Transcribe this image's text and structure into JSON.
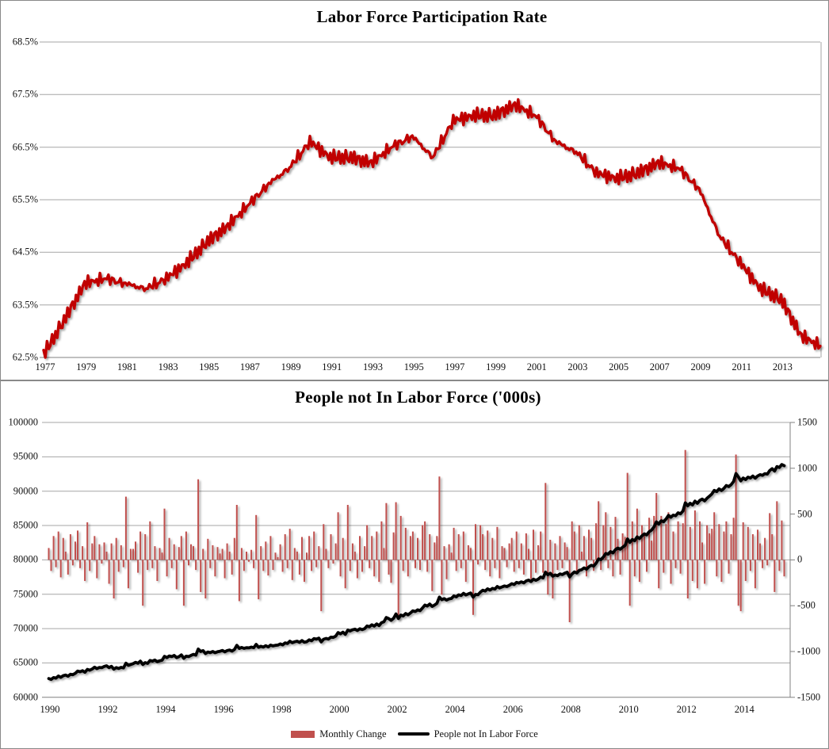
{
  "page": {
    "background": "#ffffff",
    "panel_border_color": "#898989",
    "grid_color": "#A6A6A6",
    "axis_color": "#808080"
  },
  "chart_data": [
    {
      "type": "line",
      "title": "Labor Force Participation Rate",
      "series_name": "Labor Force Participation Rate",
      "line_color": "#C00000",
      "y_ticks": [
        "68.5%",
        "67.5%",
        "66.5%",
        "65.5%",
        "64.5%",
        "63.5%",
        "62.5%"
      ],
      "y_tick_values": [
        68.5,
        67.5,
        66.5,
        65.5,
        64.5,
        63.5,
        62.5
      ],
      "ylim": [
        62.5,
        68.5
      ],
      "x_tick_years": [
        1977,
        1979,
        1981,
        1983,
        1985,
        1987,
        1989,
        1991,
        1993,
        1995,
        1997,
        1999,
        2001,
        2003,
        2005,
        2007,
        2009,
        2011,
        2013
      ],
      "x_range": [
        1977.0,
        2014.92
      ],
      "frequency": "monthly",
      "anchor_year_start": 1977,
      "anchor_values_january": [
        62.55,
        63.2,
        63.9,
        64.0,
        63.9,
        63.8,
        64.0,
        64.3,
        64.7,
        65.0,
        65.4,
        65.8,
        66.1,
        66.6,
        66.3,
        66.3,
        66.2,
        66.5,
        66.7,
        66.3,
        67.0,
        67.1,
        67.1,
        67.3,
        67.1,
        66.6,
        66.4,
        66.0,
        65.9,
        66.0,
        66.2,
        66.1,
        65.7,
        64.8,
        64.3,
        63.8,
        63.6,
        62.9,
        62.7
      ],
      "noise_a": [
        0.05,
        -0.06,
        0.09,
        -0.05,
        0.0,
        0.07,
        -0.08,
        0.03,
        -0.06,
        0.08,
        -0.03,
        -0.04
      ],
      "noise_b": [
        0.04,
        -0.05,
        0.06,
        0.0,
        -0.04,
        0.05,
        -0.03
      ],
      "grid": true
    },
    {
      "type": "bar+line",
      "title": "People not In Labor Force ('000s)",
      "left_axis": {
        "ticks": [
          100000,
          95000,
          90000,
          85000,
          80000,
          75000,
          70000,
          65000,
          60000
        ],
        "lim": [
          60000,
          100000
        ]
      },
      "right_axis": {
        "ticks": [
          1500,
          1000,
          500,
          0,
          -500,
          -1000,
          -1500
        ],
        "lim": [
          -1500,
          1500
        ]
      },
      "x_tick_years": [
        1990,
        1992,
        1994,
        1996,
        1998,
        2000,
        2002,
        2004,
        2006,
        2008,
        2010,
        2012,
        2014
      ],
      "x_range": [
        1990.0,
        2015.5
      ],
      "frequency": "monthly",
      "start_month": "1990-01",
      "start_value": 62600,
      "bar_color": "#C0504D",
      "line_color": "#000000",
      "monthly_change": [
        130,
        -120,
        260,
        -80,
        310,
        -190,
        240,
        90,
        -160,
        280,
        -60,
        200,
        320,
        -90,
        150,
        -230,
        410,
        -120,
        180,
        260,
        -200,
        170,
        -40,
        190,
        90,
        -260,
        180,
        -420,
        240,
        -130,
        160,
        -80,
        690,
        -310,
        120,
        120,
        200,
        -140,
        310,
        -500,
        280,
        -110,
        420,
        -90,
        150,
        -230,
        130,
        80,
        560,
        -180,
        240,
        -90,
        170,
        -320,
        140,
        260,
        -500,
        310,
        -60,
        170,
        150,
        -110,
        880,
        -350,
        120,
        -420,
        230,
        -90,
        160,
        -180,
        140,
        70,
        120,
        -200,
        180,
        90,
        -160,
        240,
        600,
        -450,
        130,
        -120,
        90,
        -20,
        110,
        -90,
        490,
        -430,
        150,
        -120,
        200,
        -170,
        260,
        -110,
        80,
        30,
        170,
        -130,
        280,
        -90,
        340,
        -220,
        130,
        90,
        -160,
        250,
        -240,
        80,
        260,
        -120,
        310,
        -80,
        150,
        -560,
        390,
        120,
        -90,
        280,
        -40,
        180,
        520,
        -180,
        240,
        -310,
        600,
        -120,
        180,
        90,
        -200,
        260,
        -130,
        150,
        380,
        -90,
        260,
        -180,
        310,
        -240,
        420,
        130,
        620,
        -160,
        -250,
        300,
        630,
        -650,
        480,
        -120,
        350,
        -180,
        260,
        310,
        -90,
        240,
        -110,
        380,
        420,
        -130,
        280,
        -340,
        190,
        260,
        910,
        -380,
        150,
        -210,
        170,
        80,
        350,
        -120,
        280,
        -90,
        310,
        -240,
        160,
        130,
        -600,
        390,
        -50,
        380,
        280,
        -110,
        320,
        -180,
        240,
        -90,
        360,
        -200,
        150,
        130,
        -80,
        180,
        240,
        -130,
        310,
        -90,
        180,
        -160,
        290,
        120,
        -210,
        330,
        -140,
        160,
        310,
        -140,
        840,
        -380,
        220,
        -420,
        180,
        -110,
        260,
        -90,
        190,
        140,
        -680,
        420,
        310,
        -150,
        380,
        90,
        260,
        -180,
        330,
        240,
        -120,
        400,
        640,
        -110,
        380,
        520,
        -90,
        360,
        -180,
        470,
        230,
        -160,
        290,
        250,
        950,
        -500,
        420,
        -180,
        560,
        -240,
        380,
        290,
        -130,
        460,
        210,
        480,
        730,
        -310,
        480,
        -140,
        390,
        520,
        -260,
        310,
        -90,
        420,
        -150,
        400,
        1200,
        -420,
        360,
        -230,
        540,
        -310,
        420,
        190,
        -260,
        380,
        290,
        340,
        520,
        -180,
        390,
        -240,
        310,
        420,
        -150,
        280,
        460,
        1150,
        -500,
        -560,
        410,
        -230,
        360,
        -120,
        280,
        -310,
        330,
        180,
        -90,
        240,
        -60,
        510,
        280,
        -350,
        640,
        -120,
        430,
        -180
      ],
      "legend": [
        {
          "label": "Monthly Change",
          "color": "#C0504D",
          "marker": "bar"
        },
        {
          "label": "People not In Labor Force",
          "color": "#000000",
          "marker": "line"
        }
      ],
      "legend_position": "bottom"
    }
  ]
}
